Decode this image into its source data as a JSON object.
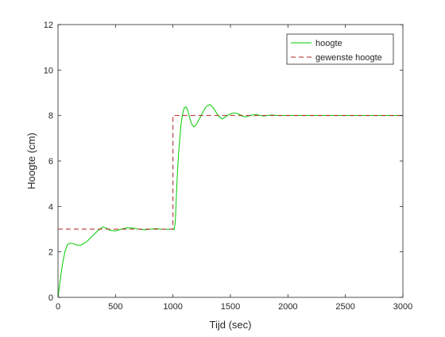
{
  "chart_data": {
    "type": "line",
    "title": "",
    "xlabel": "Tijd (sec)",
    "ylabel": "Hoogte (cm)",
    "xlim": [
      0,
      3000
    ],
    "ylim": [
      0,
      12
    ],
    "xticks": [
      0,
      500,
      1000,
      1500,
      2000,
      2500,
      3000
    ],
    "yticks": [
      0,
      2,
      4,
      6,
      8,
      10,
      12
    ],
    "grid": false,
    "legend_position": "top-right",
    "series": [
      {
        "name": "hoogte",
        "color": "#00cc00",
        "style": "solid",
        "x": [
          0,
          20,
          40,
          60,
          80,
          100,
          130,
          160,
          200,
          250,
          300,
          350,
          390,
          420,
          450,
          500,
          550,
          600,
          650,
          700,
          750,
          800,
          850,
          900,
          950,
          1000,
          1010,
          1020,
          1030,
          1040,
          1050,
          1060,
          1070,
          1080,
          1090,
          1100,
          1115,
          1130,
          1145,
          1160,
          1180,
          1200,
          1230,
          1260,
          1290,
          1320,
          1350,
          1380,
          1400,
          1430,
          1460,
          1490,
          1520,
          1550,
          1580,
          1610,
          1640,
          1670,
          1700,
          1730,
          1760,
          1790,
          1820,
          1850,
          1880,
          1910,
          1950,
          2000,
          2100,
          2300,
          2500,
          2700,
          3000
        ],
        "y": [
          0.0,
          0.8,
          1.5,
          2.0,
          2.3,
          2.38,
          2.37,
          2.3,
          2.3,
          2.45,
          2.7,
          2.95,
          3.1,
          3.05,
          2.95,
          2.92,
          3.0,
          3.06,
          3.05,
          3.0,
          2.97,
          3.0,
          3.02,
          3.0,
          2.99,
          3.0,
          2.97,
          3.3,
          4.5,
          5.6,
          6.4,
          7.0,
          7.6,
          7.95,
          8.2,
          8.35,
          8.38,
          8.2,
          7.9,
          7.65,
          7.5,
          7.58,
          7.85,
          8.15,
          8.4,
          8.48,
          8.35,
          8.1,
          7.95,
          7.85,
          7.95,
          8.05,
          8.1,
          8.1,
          8.05,
          7.95,
          7.95,
          8.0,
          8.03,
          8.03,
          8.0,
          7.98,
          8.0,
          8.02,
          8.02,
          8.0,
          8.0,
          8.0,
          8.0,
          8.0,
          8.0,
          8.0,
          8.0
        ]
      },
      {
        "name": "gewenste hoogte",
        "color": "#b22222",
        "style": "dashed",
        "x": [
          0,
          1000,
          1000,
          3000
        ],
        "y": [
          3,
          3,
          8,
          8
        ]
      }
    ]
  }
}
